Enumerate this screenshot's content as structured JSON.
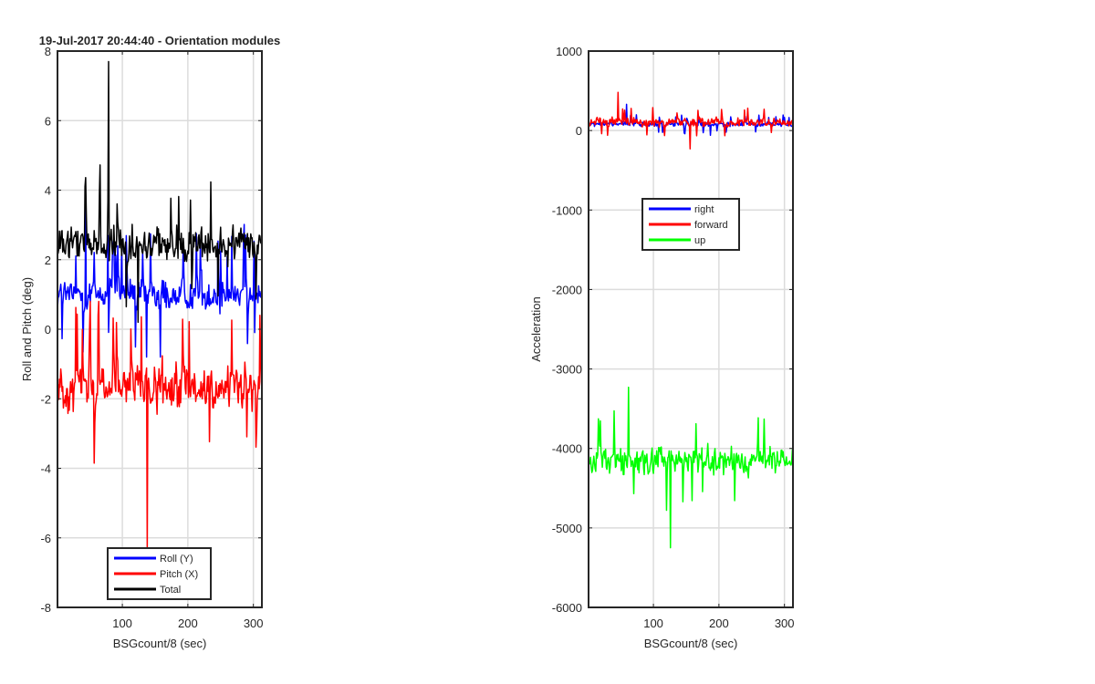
{
  "chart_data": [
    {
      "type": "line",
      "title": "19-Jul-2017 20:44:40 - Orientation modules",
      "xlabel": "BSGcount/8 (sec)",
      "ylabel": "Roll and Pitch (deg)",
      "xlim": [
        1,
        313
      ],
      "ylim": [
        -8,
        8
      ],
      "xticks": [
        100,
        200,
        300
      ],
      "yticks": [
        -8,
        -6,
        -4,
        -2,
        0,
        2,
        4,
        6,
        8
      ],
      "grid": true,
      "legend_position": "bottom-center",
      "series": [
        {
          "name": "Roll (Y)",
          "color": "#0000ff",
          "mean": 1.0,
          "spread": 0.9,
          "min": -0.8,
          "max": 3.5
        },
        {
          "name": "Pitch (X)",
          "color": "#ff0000",
          "mean": -1.7,
          "spread": 1.2,
          "min": -6.4,
          "max": 0.8
        },
        {
          "name": "Total",
          "color": "#000000",
          "mean": 2.4,
          "spread": 1.0,
          "min": 0.2,
          "max": 7.7
        }
      ]
    },
    {
      "type": "line",
      "title": "",
      "xlabel": "BSGcount/8 (sec)",
      "ylabel": "Acceleration",
      "xlim": [
        1,
        313
      ],
      "ylim": [
        -6000,
        1000
      ],
      "xticks": [
        100,
        200,
        300
      ],
      "yticks": [
        -6000,
        -5000,
        -4000,
        -3000,
        -2000,
        -1000,
        0,
        1000
      ],
      "grid": true,
      "legend_position": "center",
      "series": [
        {
          "name": "right",
          "color": "#0000ff",
          "mean": 80,
          "spread": 60,
          "min": -60,
          "max": 330
        },
        {
          "name": "forward",
          "color": "#ff0000",
          "mean": 100,
          "spread": 100,
          "min": -230,
          "max": 480
        },
        {
          "name": "up",
          "color": "#00ff00",
          "mean": -4150,
          "spread": 320,
          "min": -5250,
          "max": -3230
        }
      ]
    }
  ]
}
